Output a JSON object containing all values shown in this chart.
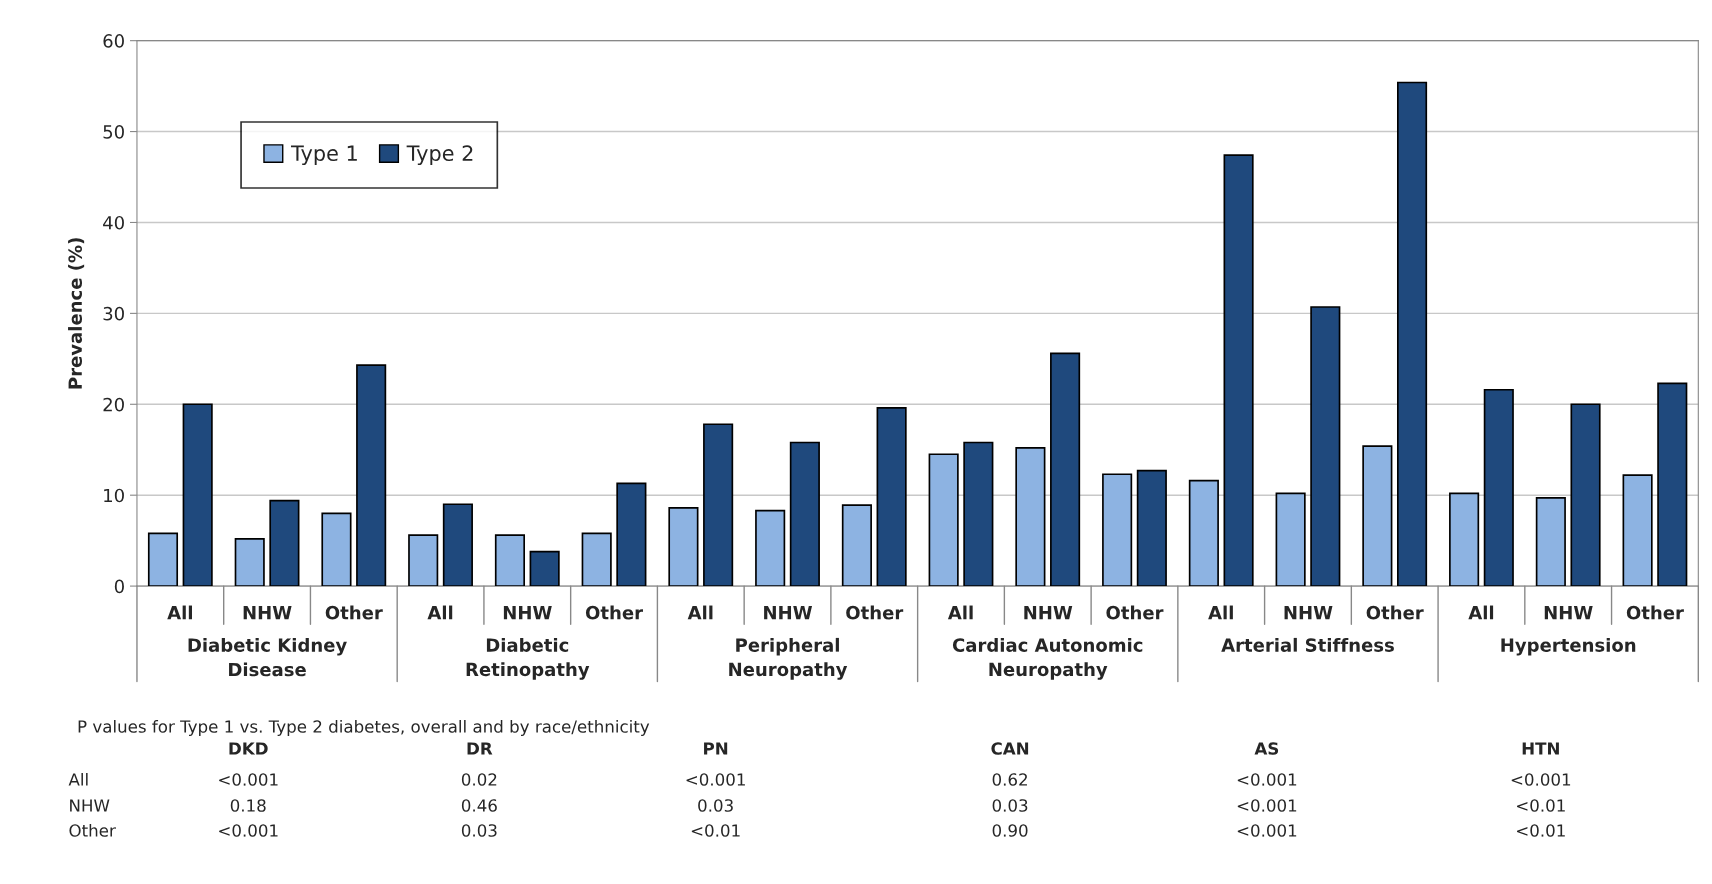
{
  "chart_data": {
    "type": "bar",
    "ylabel": "Prevalence (%)",
    "categories": [
      "All",
      "NHW",
      "Other",
      "All",
      "NHW",
      "Other",
      "All",
      "NHW",
      "Other",
      "All",
      "NHW",
      "Other",
      "All",
      "NHW",
      "Other",
      "All",
      "NHW",
      "Other"
    ],
    "series": [
      {
        "name": "Type 1",
        "color": "#8db3e2",
        "values": [
          5.8,
          5.2,
          8.0,
          5.6,
          5.6,
          5.8,
          8.6,
          8.3,
          8.9,
          14.5,
          15.2,
          12.3,
          11.6,
          10.2,
          15.4,
          10.2,
          9.7,
          12.2
        ]
      },
      {
        "name": "Type 2",
        "color": "#1f497d",
        "values": [
          20.0,
          9.4,
          24.3,
          9.0,
          3.8,
          11.3,
          17.8,
          15.8,
          19.6,
          15.8,
          25.6,
          12.7,
          47.4,
          30.7,
          55.4,
          21.6,
          20.0,
          22.3
        ]
      }
    ],
    "ylim": [
      0,
      60
    ],
    "yticks": [
      0,
      10,
      20,
      30,
      40,
      50,
      60
    ],
    "grid": "y",
    "legend": "top left",
    "annotations": [
      "Diabetic Kidney\nDisease",
      "Diabetic\nRetinopathy",
      "Peripheral\nNeuropathy",
      "Cardiac Autonomic\nNeuropathy",
      "Arterial Stiffness",
      "Hypertension",
      "P values for Type 1 vs. Type 2 diabetes, overall and by race/ethnicity",
      "DKD",
      "DR",
      "PN",
      "CAN",
      "AS",
      "HTN",
      "All",
      "<0.001",
      "0.02",
      "<0.001",
      "0.62",
      "<0.001",
      "<0.001",
      "NHW",
      "0.18",
      "0.46",
      "0.03",
      "0.03",
      "<0.001",
      "<0.01",
      "Other",
      "<0.001",
      "0.03",
      "<0.01",
      "0.90",
      "<0.001",
      "<0.01"
    ]
  }
}
